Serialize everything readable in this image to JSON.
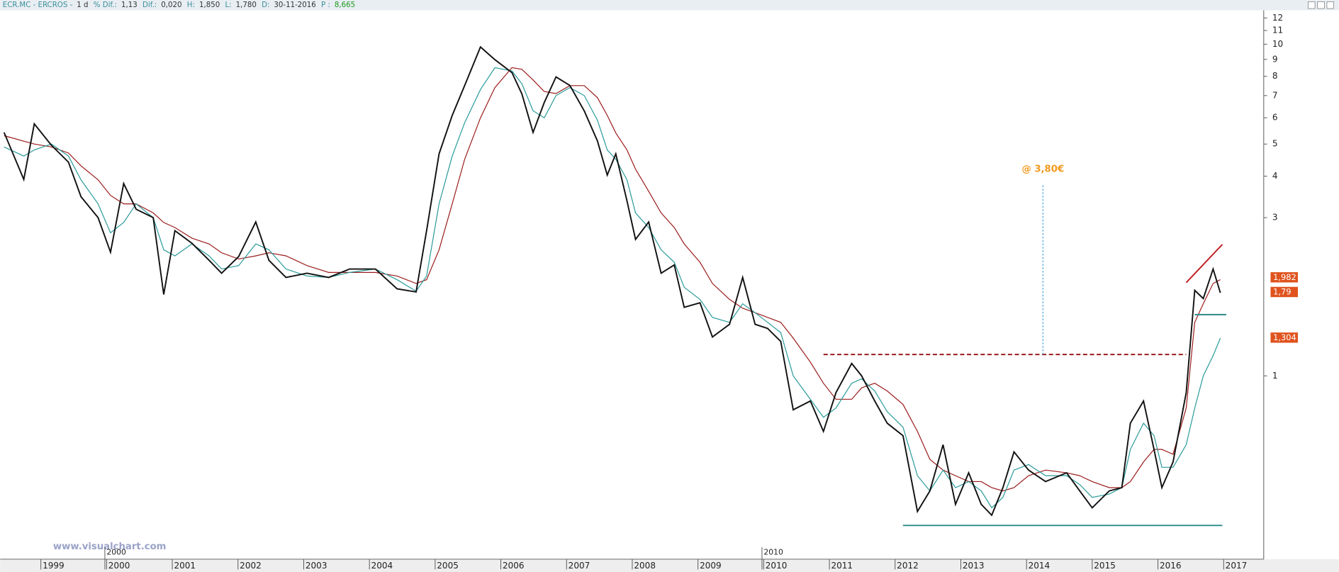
{
  "chart_data": {
    "type": "line",
    "header": [
      {
        "label": "ECR.MC - ERCROS -",
        "value": "1 d"
      },
      {
        "label": "% Dif.:",
        "value": "1,13"
      },
      {
        "label": "Dif.:",
        "value": "0,020"
      },
      {
        "label": "H:",
        "value": "1,850"
      },
      {
        "label": "L:",
        "value": "1,780"
      },
      {
        "label": "D:",
        "value": "30-11-2016"
      },
      {
        "label": "P :",
        "value": "8,665"
      }
    ],
    "watermark": "www.visualchart.com",
    "log_y": true,
    "xlim": [
      1998.38,
      2017.61
    ],
    "ylim": [
      0.28,
      12.66
    ],
    "xticks": [
      1999,
      2000,
      2001,
      2002,
      2003,
      2004,
      2005,
      2006,
      2007,
      2008,
      2009,
      2010,
      2011,
      2012,
      2013,
      2014,
      2015,
      2016,
      2017
    ],
    "decade_marks": [
      2000,
      2010
    ],
    "yticks": [
      12,
      11,
      10,
      9,
      8,
      7,
      6,
      5,
      4,
      3,
      1
    ],
    "x": [
      1998.44,
      1998.74,
      1998.9,
      1999.16,
      1999.42,
      1999.61,
      1999.87,
      2000.06,
      2000.26,
      2000.45,
      2000.71,
      2000.87,
      2001.04,
      2001.3,
      2001.56,
      2001.75,
      2002.01,
      2002.27,
      2002.47,
      2002.73,
      2003.05,
      2003.38,
      2003.7,
      2004.09,
      2004.42,
      2004.71,
      2004.87,
      2005.06,
      2005.26,
      2005.45,
      2005.69,
      2005.91,
      2006.17,
      2006.32,
      2006.49,
      2006.66,
      2006.84,
      2007.05,
      2007.27,
      2007.47,
      2007.62,
      2007.75,
      2007.92,
      2008.05,
      2008.25,
      2008.44,
      2008.64,
      2008.79,
      2009.03,
      2009.22,
      2009.48,
      2009.68,
      2009.87,
      2010.06,
      2010.26,
      2010.45,
      2010.71,
      2010.91,
      2011.1,
      2011.34,
      2011.49,
      2011.69,
      2011.88,
      2012.12,
      2012.34,
      2012.53,
      2012.73,
      2012.92,
      2013.12,
      2013.31,
      2013.47,
      2013.64,
      2013.81,
      2014.03,
      2014.29,
      2014.61,
      2014.81,
      2015.0,
      2015.26,
      2015.45,
      2015.58,
      2015.78,
      2015.94,
      2016.06,
      2016.23,
      2016.43,
      2016.56,
      2016.69,
      2016.84,
      2016.95
    ],
    "series": [
      {
        "name": "price",
        "color": "#111111",
        "width": 1.6,
        "values": [
          5.42,
          3.91,
          5.75,
          4.96,
          4.41,
          3.47,
          3.0,
          2.36,
          3.8,
          3.18,
          3.0,
          1.76,
          2.74,
          2.51,
          2.23,
          2.04,
          2.29,
          2.91,
          2.23,
          1.98,
          2.04,
          1.98,
          2.1,
          2.1,
          1.83,
          1.79,
          2.74,
          4.67,
          6.1,
          7.51,
          9.81,
          8.98,
          8.21,
          7.08,
          5.42,
          6.67,
          7.97,
          7.51,
          6.29,
          5.11,
          4.03,
          4.67,
          3.37,
          2.58,
          2.91,
          2.04,
          2.16,
          1.61,
          1.66,
          1.31,
          1.43,
          1.98,
          1.43,
          1.39,
          1.27,
          0.79,
          0.84,
          0.68,
          0.89,
          1.09,
          1.0,
          0.84,
          0.72,
          0.66,
          0.39,
          0.45,
          0.62,
          0.41,
          0.51,
          0.41,
          0.38,
          0.46,
          0.59,
          0.52,
          0.48,
          0.51,
          0.45,
          0.4,
          0.45,
          0.46,
          0.72,
          0.84,
          0.6,
          0.46,
          0.55,
          0.89,
          1.81,
          1.71,
          2.1,
          1.78
        ]
      },
      {
        "name": "ma-slow",
        "color": "#9b1c1c",
        "width": 1,
        "values": [
          5.3,
          5.1,
          5.0,
          4.9,
          4.7,
          4.3,
          3.9,
          3.5,
          3.3,
          3.3,
          3.1,
          2.9,
          2.8,
          2.6,
          2.5,
          2.35,
          2.25,
          2.3,
          2.35,
          2.3,
          2.15,
          2.05,
          2.05,
          2.05,
          2.0,
          1.9,
          1.95,
          2.4,
          3.3,
          4.5,
          6.0,
          7.4,
          8.5,
          8.4,
          7.8,
          7.2,
          7.1,
          7.5,
          7.5,
          6.9,
          6.1,
          5.4,
          4.8,
          4.2,
          3.6,
          3.1,
          2.8,
          2.5,
          2.2,
          1.9,
          1.7,
          1.6,
          1.55,
          1.5,
          1.45,
          1.3,
          1.1,
          0.95,
          0.85,
          0.85,
          0.92,
          0.95,
          0.9,
          0.82,
          0.68,
          0.56,
          0.52,
          0.5,
          0.48,
          0.48,
          0.46,
          0.45,
          0.46,
          0.5,
          0.52,
          0.51,
          0.5,
          0.48,
          0.46,
          0.46,
          0.48,
          0.55,
          0.6,
          0.6,
          0.58,
          0.8,
          1.45,
          1.65,
          1.9,
          1.95
        ]
      },
      {
        "name": "ma-fast",
        "color": "#2a9a9a",
        "width": 1,
        "values": [
          4.9,
          4.6,
          4.8,
          5.0,
          4.6,
          3.9,
          3.3,
          2.7,
          2.9,
          3.3,
          3.0,
          2.4,
          2.3,
          2.5,
          2.3,
          2.1,
          2.15,
          2.5,
          2.4,
          2.1,
          2.0,
          1.98,
          2.05,
          2.1,
          1.95,
          1.8,
          2.0,
          3.3,
          4.6,
          5.8,
          7.3,
          8.5,
          8.3,
          7.6,
          6.3,
          6.0,
          7.0,
          7.4,
          7.0,
          5.9,
          4.8,
          4.5,
          3.9,
          3.1,
          2.8,
          2.4,
          2.2,
          1.85,
          1.7,
          1.5,
          1.45,
          1.65,
          1.55,
          1.45,
          1.35,
          1.0,
          0.85,
          0.75,
          0.8,
          0.95,
          0.98,
          0.9,
          0.78,
          0.7,
          0.5,
          0.45,
          0.52,
          0.46,
          0.48,
          0.45,
          0.4,
          0.43,
          0.52,
          0.54,
          0.5,
          0.5,
          0.47,
          0.43,
          0.44,
          0.46,
          0.6,
          0.72,
          0.66,
          0.53,
          0.53,
          0.62,
          0.8,
          1.0,
          1.15,
          1.3
        ]
      }
    ],
    "price_tags": [
      {
        "value": 1.982,
        "label": "1,982"
      },
      {
        "value": 1.79,
        "label": "1,79"
      },
      {
        "value": 1.304,
        "label": "1,304"
      }
    ],
    "target": {
      "label": "@ 3,80€",
      "value": 3.8,
      "from": 1.16,
      "x": 2014.25
    },
    "lines": [
      {
        "name": "resistance",
        "color": "#9b1c1c",
        "dash": "5,3",
        "x": [
          2010.91,
          2016.43
        ],
        "values": [
          1.16,
          1.16
        ]
      },
      {
        "name": "support",
        "color": "#2a8a8a",
        "x": [
          2012.12,
          2016.98
        ],
        "values": [
          0.354,
          0.354
        ]
      },
      {
        "name": "breakout-level",
        "color": "#2a8a8a",
        "x": [
          2016.56,
          2017.04
        ],
        "values": [
          1.53,
          1.53
        ]
      },
      {
        "name": "trendline",
        "color": "#c01a1a",
        "x": [
          2016.43,
          2016.98
        ],
        "values": [
          1.91,
          2.49
        ]
      }
    ]
  }
}
